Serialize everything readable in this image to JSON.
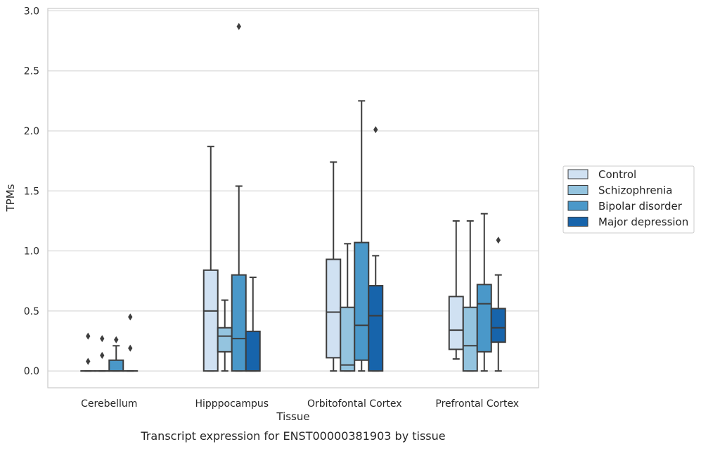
{
  "chart_data": {
    "type": "box",
    "caption": "Transcript expression for ENST00000381903 by tissue",
    "xlabel": "Tissue",
    "ylabel": "TPMs",
    "ylim": [
      -0.14,
      3.02
    ],
    "yticks": [
      "0.0",
      "0.5",
      "1.0",
      "1.5",
      "2.0",
      "2.5",
      "3.0"
    ],
    "ytick_values": [
      0,
      0.5,
      1.0,
      1.5,
      2.0,
      2.5,
      3.0
    ],
    "grid": "horizontal",
    "legend_position": "right",
    "categories": [
      "Cerebellum",
      "Hipppocampus",
      "Orbitofontal Cortex",
      "Prefrontal Cortex"
    ],
    "series": [
      {
        "name": "Control",
        "color": "#d0e1f2",
        "boxes": [
          {
            "whislo": 0,
            "q1": 0,
            "med": 0,
            "q3": 0,
            "whishi": 0,
            "fliers": [
              0.08,
              0.29
            ]
          },
          {
            "whislo": 0,
            "q1": 0,
            "med": 0.5,
            "q3": 0.84,
            "whishi": 1.87,
            "fliers": []
          },
          {
            "whislo": 0,
            "q1": 0.11,
            "med": 0.49,
            "q3": 0.93,
            "whishi": 1.74,
            "fliers": []
          },
          {
            "whislo": 0.1,
            "q1": 0.18,
            "med": 0.34,
            "q3": 0.62,
            "whishi": 1.25,
            "fliers": []
          }
        ]
      },
      {
        "name": "Schizophrenia",
        "color": "#94c4df",
        "boxes": [
          {
            "whislo": 0,
            "q1": 0,
            "med": 0,
            "q3": 0,
            "whishi": 0,
            "fliers": [
              0.13,
              0.27
            ]
          },
          {
            "whislo": 0,
            "q1": 0.16,
            "med": 0.29,
            "q3": 0.36,
            "whishi": 0.59,
            "fliers": []
          },
          {
            "whislo": 0,
            "q1": 0,
            "med": 0.05,
            "q3": 0.53,
            "whishi": 1.06,
            "fliers": []
          },
          {
            "whislo": 0,
            "q1": 0,
            "med": 0.21,
            "q3": 0.53,
            "whishi": 1.25,
            "fliers": []
          }
        ]
      },
      {
        "name": "Bipolar disorder",
        "color": "#4a98c9",
        "boxes": [
          {
            "whislo": 0,
            "q1": 0,
            "med": 0,
            "q3": 0.09,
            "whishi": 0.21,
            "fliers": [
              0.26
            ]
          },
          {
            "whislo": 0,
            "q1": 0,
            "med": 0.27,
            "q3": 0.8,
            "whishi": 1.54,
            "fliers": [
              2.87
            ]
          },
          {
            "whislo": 0,
            "q1": 0.09,
            "med": 0.38,
            "q3": 1.07,
            "whishi": 2.25,
            "fliers": []
          },
          {
            "whislo": 0,
            "q1": 0.16,
            "med": 0.56,
            "q3": 0.72,
            "whishi": 1.31,
            "fliers": []
          }
        ]
      },
      {
        "name": "Major depression",
        "color": "#1764ab",
        "boxes": [
          {
            "whislo": 0,
            "q1": 0,
            "med": 0,
            "q3": 0,
            "whishi": 0,
            "fliers": [
              0.19,
              0.45
            ]
          },
          {
            "whislo": 0,
            "q1": 0,
            "med": 0,
            "q3": 0.33,
            "whishi": 0.78,
            "fliers": []
          },
          {
            "whislo": 0,
            "q1": 0,
            "med": 0.46,
            "q3": 0.71,
            "whishi": 0.96,
            "fliers": [
              2.01
            ]
          },
          {
            "whislo": 0,
            "q1": 0.24,
            "med": 0.36,
            "q3": 0.52,
            "whishi": 0.8,
            "fliers": [
              1.09
            ]
          }
        ]
      }
    ]
  }
}
